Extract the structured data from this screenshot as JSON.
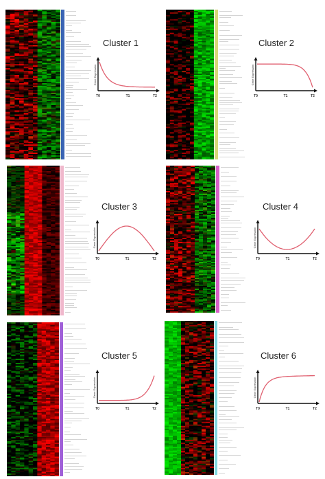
{
  "clusters": [
    {
      "id": "cluster-1",
      "title": "Cluster 1",
      "shape": "decay",
      "bar_color": "#3a64b4",
      "heat": "mixed-red"
    },
    {
      "id": "cluster-2",
      "title": "Cluster 2",
      "shape": "late-drop",
      "bar_color": "#d8d878",
      "heat": "green-right"
    },
    {
      "id": "cluster-3",
      "title": "Cluster 3",
      "shape": "peak",
      "bar_color": "#f0b8cc",
      "heat": "red-middle"
    },
    {
      "id": "cluster-4",
      "title": "Cluster 4",
      "shape": "valley",
      "bar_color": "#d860c8",
      "heat": "mixed-red"
    },
    {
      "id": "cluster-5",
      "title": "Cluster 5",
      "shape": "late-rise",
      "bar_color": "#a060d8",
      "heat": "red-right"
    },
    {
      "id": "cluster-6",
      "title": "Cluster 6",
      "shape": "saturate",
      "bar_color": "#80d8e0",
      "heat": "green-left"
    }
  ],
  "plot_labels": {
    "ylabel": "Gene Expression",
    "ticks": [
      "T0",
      "T1",
      "T2"
    ]
  },
  "colors": {
    "curve": "#e06070",
    "axis": "#111111"
  }
}
